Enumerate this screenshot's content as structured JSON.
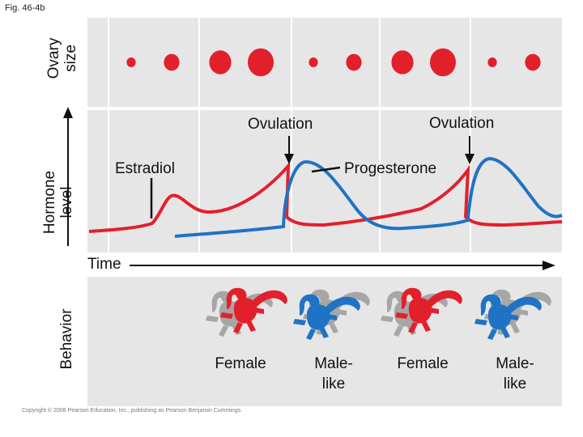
{
  "figure_label": "Fig. 46-4b",
  "axes": {
    "ovary": "Ovary size",
    "hormone_line1": "Hormone",
    "hormone_line2": "level",
    "behavior": "Behavior",
    "time": "Time"
  },
  "ovary_size_relative": [
    0.35,
    0.6,
    0.85,
    1.0,
    0.35,
    0.6,
    0.85,
    1.0,
    0.35,
    0.6
  ],
  "annotations": {
    "ovulation_1": "Ovulation",
    "ovulation_2": "Ovulation",
    "estradiol": "Estradiol",
    "progesterone": "Progesterone"
  },
  "behaviors": [
    {
      "line1": "Female",
      "line2": ""
    },
    {
      "line1": "Male-",
      "line2": "like"
    },
    {
      "line1": "Female",
      "line2": ""
    },
    {
      "line1": "Male-",
      "line2": "like"
    }
  ],
  "copyright": "Copyright © 2008 Pearson Education, Inc., publishing as Pearson Benjamin Cummings.",
  "colors": {
    "estradiol": "#e2202c",
    "progesterone": "#1f73c4",
    "ovary_dot": "#e2202c",
    "panel": "#e6e6e6",
    "divider": "#ffffff",
    "lizard_gray": "#a6a6a6"
  }
}
